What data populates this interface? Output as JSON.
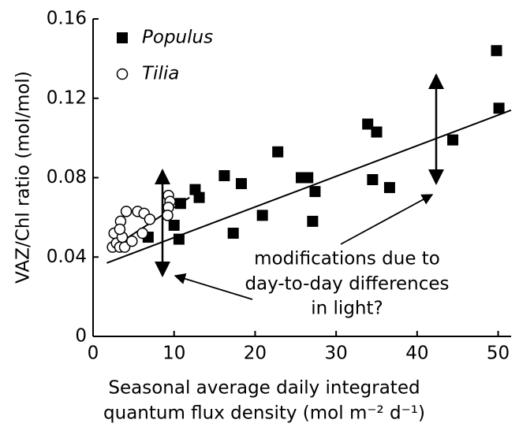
{
  "chart_data": {
    "type": "scatter",
    "xlabel": [
      "Seasonal average daily integrated",
      "quantum flux density (mol m⁻² d⁻¹)"
    ],
    "ylabel": "VAZ/Chl ratio (mol/mol)",
    "xlim": [
      0,
      51.6
    ],
    "xticks": [
      0,
      10,
      20,
      30,
      40,
      50
    ],
    "ylim": [
      0,
      0.16
    ],
    "yticks": [
      0,
      0.04,
      0.08,
      0.12,
      0.16
    ],
    "legend": "top-left",
    "series": [
      {
        "name": "Populus",
        "marker": "square",
        "color": "#000000",
        "x": [
          49.8,
          50.1,
          44.4,
          33.9,
          35.0,
          34.5,
          36.6,
          22.8,
          16.2,
          18.3,
          25.7,
          26.5,
          27.4,
          27.1,
          20.9,
          17.3,
          12.6,
          13.1,
          10.8,
          10.0,
          10.6,
          6.8
        ],
        "values": [
          0.144,
          0.115,
          0.099,
          0.107,
          0.103,
          0.079,
          0.075,
          0.093,
          0.081,
          0.077,
          0.08,
          0.08,
          0.073,
          0.058,
          0.061,
          0.052,
          0.074,
          0.07,
          0.067,
          0.056,
          0.049,
          0.05
        ]
      },
      {
        "name": "Tilia",
        "marker": "circle",
        "color": "#ffffff",
        "x": [
          2.4,
          2.9,
          3.3,
          3.9,
          2.6,
          3.6,
          4.1,
          3.4,
          3.3,
          4.8,
          5.5,
          6.3,
          7.0,
          6.1,
          9.3,
          9.5,
          9.3,
          9.2
        ],
        "values": [
          0.045,
          0.047,
          0.045,
          0.045,
          0.052,
          0.05,
          0.063,
          0.058,
          0.054,
          0.048,
          0.063,
          0.062,
          0.059,
          0.052,
          0.071,
          0.068,
          0.065,
          0.061
        ]
      }
    ],
    "fit_lines": [
      {
        "x": [
          1.7,
          51.6
        ],
        "values": [
          0.037,
          0.114
        ]
      },
      {
        "x": [
          2.1,
          11.9
        ],
        "values": [
          0.044,
          0.07
        ]
      }
    ],
    "annotation": [
      "modifications due to",
      "day-to-day differences",
      "in light?"
    ]
  }
}
